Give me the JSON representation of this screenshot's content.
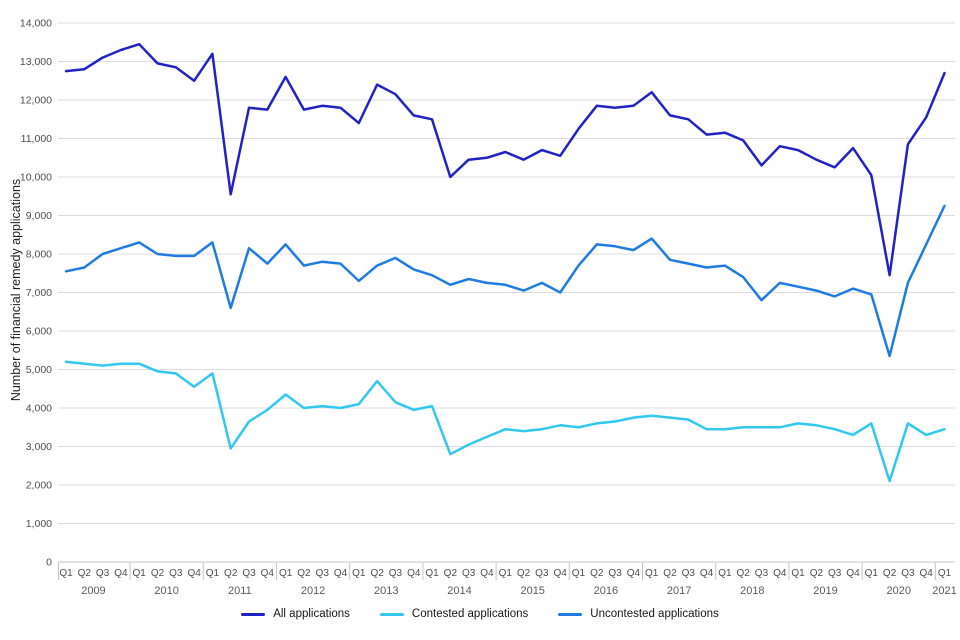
{
  "chart_data": {
    "type": "line",
    "title": "",
    "xlabel": "",
    "ylabel": "Number of financial remedy applications",
    "ylim": [
      0,
      14000
    ],
    "ytick_step": 1000,
    "grid": true,
    "legend_position": "bottom",
    "yticks": [
      "0",
      "1,000",
      "2,000",
      "3,000",
      "4,000",
      "5,000",
      "6,000",
      "7,000",
      "8,000",
      "9,000",
      "10,000",
      "11,000",
      "12,000",
      "13,000",
      "14,000"
    ],
    "quarter_labels": [
      "Q1",
      "Q2",
      "Q3",
      "Q4",
      "Q1",
      "Q2",
      "Q3",
      "Q4",
      "Q1",
      "Q2",
      "Q3",
      "Q4",
      "Q1",
      "Q2",
      "Q3",
      "Q4",
      "Q1",
      "Q2",
      "Q3",
      "Q4",
      "Q1",
      "Q2",
      "Q3",
      "Q4",
      "Q1",
      "Q2",
      "Q3",
      "Q4",
      "Q1",
      "Q2",
      "Q3",
      "Q4",
      "Q1",
      "Q2",
      "Q3",
      "Q4",
      "Q1",
      "Q2",
      "Q3",
      "Q4",
      "Q1",
      "Q2",
      "Q3",
      "Q4",
      "Q1",
      "Q2",
      "Q3",
      "Q4",
      "Q1"
    ],
    "years": [
      "2009",
      "2010",
      "2011",
      "2012",
      "2013",
      "2014",
      "2015",
      "2016",
      "2017",
      "2018",
      "2019",
      "2020",
      "2021"
    ],
    "series": [
      {
        "name": "All applications",
        "color": "#2122c4",
        "values": [
          12750,
          12800,
          13100,
          13300,
          13450,
          12950,
          12850,
          12500,
          13200,
          9550,
          11800,
          11750,
          12600,
          11750,
          11850,
          11800,
          11400,
          12400,
          12150,
          11600,
          11500,
          10000,
          10450,
          10500,
          10650,
          10450,
          10700,
          10550,
          11250,
          11850,
          11800,
          11850,
          12200,
          11600,
          11500,
          11100,
          11150,
          10950,
          10300,
          10800,
          10700,
          10450,
          10250,
          10750,
          10050,
          7450,
          10850,
          11550,
          12700
        ]
      },
      {
        "name": "Contested applications",
        "color": "#31c7f0",
        "values": [
          5200,
          5150,
          5100,
          5150,
          5150,
          4950,
          4900,
          4550,
          4900,
          2950,
          3650,
          3950,
          4350,
          4000,
          4050,
          4000,
          4100,
          4700,
          4150,
          3950,
          4050,
          2800,
          3050,
          3250,
          3450,
          3400,
          3450,
          3550,
          3500,
          3600,
          3650,
          3750,
          3800,
          3750,
          3700,
          3450,
          3450,
          3500,
          3500,
          3500,
          3600,
          3550,
          3450,
          3300,
          3600,
          2100,
          3600,
          3300,
          3450
        ]
      },
      {
        "name": "Uncontested applications",
        "color": "#1e7be2",
        "values": [
          7550,
          7650,
          8000,
          8150,
          8300,
          8000,
          7950,
          7950,
          8300,
          6600,
          8150,
          7750,
          8250,
          7700,
          7800,
          7750,
          7300,
          7700,
          7900,
          7600,
          7450,
          7200,
          7350,
          7250,
          7200,
          7050,
          7250,
          7000,
          7700,
          8250,
          8200,
          8100,
          8400,
          7850,
          7750,
          7650,
          7700,
          7400,
          6800,
          7250,
          7150,
          7050,
          6900,
          7100,
          6950,
          5350,
          7250,
          8250,
          9250
        ]
      }
    ]
  },
  "colors": {
    "gridline": "#dcdcdc",
    "axis_line": "#c4c4c4",
    "tick_text": "#4d4d4d",
    "year_text": "#5a5a5a"
  }
}
